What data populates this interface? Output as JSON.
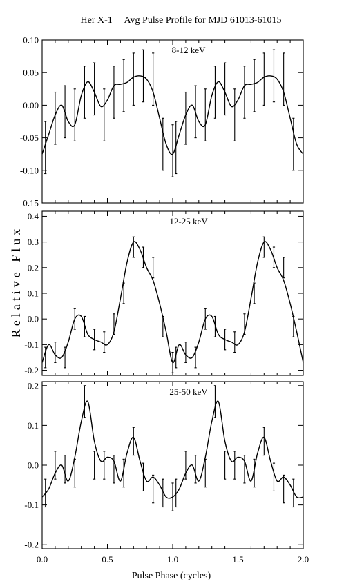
{
  "figure": {
    "title": "Her X-1     Avg Pulse Profile for MJD 61013-61015",
    "ylabel": "Relative Flux",
    "xlabel": "Pulse Phase (cycles)"
  },
  "chart_data": [
    {
      "type": "line",
      "panel_label": "8-12 keV",
      "xlim": [
        0.0,
        2.0
      ],
      "ylim": [
        -0.15,
        0.1
      ],
      "yticks": [
        "0.10",
        "0.05",
        "0.00",
        "-0.05",
        "-0.10",
        "-0.15"
      ],
      "ytick_values": [
        0.1,
        0.05,
        0.0,
        -0.05,
        -0.1,
        -0.15
      ],
      "xticks_values": [
        0.0,
        0.5,
        1.0,
        1.5,
        2.0
      ],
      "curve": {
        "x": [
          0.0,
          0.05,
          0.1,
          0.15,
          0.2,
          0.25,
          0.3,
          0.35,
          0.4,
          0.45,
          0.5,
          0.55,
          0.6,
          0.65,
          0.7,
          0.75,
          0.8,
          0.85,
          0.9,
          0.95,
          1.0,
          1.05,
          1.1,
          1.15,
          1.2,
          1.25,
          1.3,
          1.35,
          1.4,
          1.45,
          1.5,
          1.55,
          1.6,
          1.65,
          1.7,
          1.75,
          1.8,
          1.85,
          1.9,
          1.95,
          2.0
        ],
        "y": [
          -0.075,
          -0.045,
          -0.015,
          0.0,
          -0.025,
          -0.03,
          0.015,
          0.036,
          0.02,
          -0.002,
          0.008,
          0.03,
          0.032,
          0.035,
          0.043,
          0.045,
          0.04,
          0.02,
          -0.02,
          -0.06,
          -0.075,
          -0.045,
          -0.015,
          0.0,
          -0.025,
          -0.03,
          0.015,
          0.036,
          0.02,
          -0.002,
          0.008,
          0.03,
          0.032,
          0.035,
          0.043,
          0.045,
          0.04,
          0.02,
          -0.02,
          -0.06,
          -0.075
        ]
      },
      "points": {
        "x": [
          0.025,
          0.1,
          0.175,
          0.25,
          0.325,
          0.4,
          0.475,
          0.55,
          0.625,
          0.7,
          0.775,
          0.85,
          0.925,
          1.0,
          1.025,
          1.1,
          1.175,
          1.25,
          1.325,
          1.4,
          1.475,
          1.55,
          1.625,
          1.7,
          1.775,
          1.85,
          1.925
        ],
        "y": [
          -0.065,
          -0.02,
          -0.01,
          -0.015,
          0.02,
          0.025,
          -0.015,
          0.02,
          0.03,
          0.04,
          0.045,
          0.04,
          -0.06,
          -0.07,
          -0.065,
          -0.02,
          -0.01,
          -0.015,
          0.02,
          0.025,
          -0.015,
          0.02,
          0.03,
          0.04,
          0.045,
          0.04,
          -0.06
        ],
        "err": [
          0.04,
          0.04,
          0.04,
          0.04,
          0.04,
          0.04,
          0.04,
          0.04,
          0.04,
          0.04,
          0.04,
          0.04,
          0.04,
          0.04,
          0.04,
          0.04,
          0.04,
          0.04,
          0.04,
          0.04,
          0.04,
          0.04,
          0.04,
          0.04,
          0.04,
          0.04,
          0.04
        ]
      }
    },
    {
      "type": "line",
      "panel_label": "12-25 keV",
      "xlim": [
        0.0,
        2.0
      ],
      "ylim": [
        -0.22,
        0.42
      ],
      "yticks": [
        "0.4",
        "0.3",
        "0.2",
        "0.1",
        "0.0",
        "-0.1",
        "-0.2"
      ],
      "ytick_values": [
        0.4,
        0.3,
        0.2,
        0.1,
        0.0,
        -0.1,
        -0.2
      ],
      "xticks_values": [
        0.0,
        0.5,
        1.0,
        1.5,
        2.0
      ],
      "curve": {
        "x": [
          0.0,
          0.05,
          0.1,
          0.15,
          0.2,
          0.25,
          0.3,
          0.35,
          0.4,
          0.45,
          0.5,
          0.55,
          0.6,
          0.65,
          0.7,
          0.75,
          0.8,
          0.85,
          0.9,
          0.95,
          1.0,
          1.05,
          1.1,
          1.15,
          1.2,
          1.25,
          1.3,
          1.35,
          1.4,
          1.45,
          1.5,
          1.55,
          1.6,
          1.65,
          1.7,
          1.75,
          1.8,
          1.85,
          1.9,
          1.95,
          2.0
        ],
        "y": [
          -0.17,
          -0.1,
          -0.14,
          -0.15,
          -0.09,
          0.0,
          0.01,
          -0.06,
          -0.08,
          -0.09,
          -0.1,
          -0.05,
          0.08,
          0.22,
          0.3,
          0.27,
          0.2,
          0.15,
          0.06,
          -0.05,
          -0.17,
          -0.1,
          -0.14,
          -0.15,
          -0.09,
          0.0,
          0.01,
          -0.06,
          -0.08,
          -0.09,
          -0.1,
          -0.05,
          0.08,
          0.22,
          0.3,
          0.27,
          0.2,
          0.15,
          0.06,
          -0.05,
          -0.17
        ]
      },
      "points": {
        "x": [
          0.025,
          0.1,
          0.175,
          0.25,
          0.325,
          0.4,
          0.475,
          0.55,
          0.625,
          0.7,
          0.775,
          0.85,
          0.925,
          1.0,
          1.025,
          1.1,
          1.175,
          1.25,
          1.325,
          1.4,
          1.475,
          1.55,
          1.625,
          1.7,
          1.775,
          1.85,
          1.925
        ],
        "y": [
          -0.15,
          -0.13,
          -0.15,
          0.0,
          -0.03,
          -0.08,
          -0.09,
          -0.02,
          0.1,
          0.28,
          0.24,
          0.2,
          -0.03,
          -0.17,
          -0.15,
          -0.13,
          -0.15,
          0.0,
          -0.03,
          -0.08,
          -0.09,
          -0.02,
          0.1,
          0.28,
          0.24,
          0.2,
          -0.03
        ],
        "err": [
          0.04,
          0.04,
          0.04,
          0.04,
          0.04,
          0.04,
          0.04,
          0.04,
          0.04,
          0.04,
          0.04,
          0.04,
          0.04,
          0.04,
          0.04,
          0.04,
          0.04,
          0.04,
          0.04,
          0.04,
          0.04,
          0.04,
          0.04,
          0.04,
          0.04,
          0.04,
          0.04
        ]
      }
    },
    {
      "type": "line",
      "panel_label": "25-50 keV",
      "xlim": [
        0.0,
        2.0
      ],
      "ylim": [
        -0.21,
        0.21
      ],
      "yticks": [
        "0.2",
        "0.1",
        "0.0",
        "-0.1",
        "-0.2"
      ],
      "ytick_values": [
        0.2,
        0.1,
        0.0,
        -0.1,
        -0.2
      ],
      "xticks_values": [
        0.0,
        0.5,
        1.0,
        1.5,
        2.0
      ],
      "curve": {
        "x": [
          0.0,
          0.05,
          0.1,
          0.15,
          0.2,
          0.25,
          0.3,
          0.35,
          0.4,
          0.45,
          0.5,
          0.55,
          0.6,
          0.65,
          0.7,
          0.75,
          0.8,
          0.85,
          0.9,
          0.95,
          1.0,
          1.05,
          1.1,
          1.15,
          1.2,
          1.25,
          1.3,
          1.35,
          1.4,
          1.45,
          1.5,
          1.55,
          1.6,
          1.65,
          1.7,
          1.75,
          1.8,
          1.85,
          1.9,
          1.95,
          2.0
        ],
        "y": [
          -0.08,
          -0.06,
          -0.02,
          0.0,
          -0.04,
          0.02,
          0.11,
          0.16,
          0.06,
          0.01,
          0.02,
          0.01,
          -0.04,
          0.03,
          0.07,
          0.01,
          -0.04,
          -0.03,
          -0.05,
          -0.08,
          -0.08,
          -0.06,
          -0.02,
          0.0,
          -0.04,
          0.02,
          0.11,
          0.16,
          0.06,
          0.01,
          0.02,
          0.01,
          -0.04,
          0.03,
          0.07,
          0.01,
          -0.04,
          -0.03,
          -0.05,
          -0.08,
          -0.08
        ]
      },
      "points": {
        "x": [
          0.025,
          0.1,
          0.175,
          0.25,
          0.325,
          0.4,
          0.475,
          0.55,
          0.625,
          0.7,
          0.775,
          0.85,
          0.925,
          1.0,
          1.025,
          1.1,
          1.175,
          1.25,
          1.325,
          1.4,
          1.475,
          1.55,
          1.625,
          1.7,
          1.775,
          1.85,
          1.925
        ],
        "y": [
          -0.07,
          0.0,
          -0.01,
          -0.02,
          0.16,
          0.0,
          0.0,
          -0.01,
          -0.02,
          0.06,
          -0.03,
          -0.06,
          -0.07,
          -0.08,
          -0.07,
          0.0,
          -0.01,
          -0.02,
          0.16,
          0.0,
          0.0,
          -0.01,
          -0.02,
          0.06,
          -0.03,
          -0.06,
          -0.07
        ],
        "err": [
          0.035,
          0.035,
          0.035,
          0.035,
          0.04,
          0.035,
          0.035,
          0.035,
          0.035,
          0.035,
          0.035,
          0.035,
          0.035,
          0.035,
          0.035,
          0.035,
          0.035,
          0.035,
          0.04,
          0.035,
          0.035,
          0.035,
          0.035,
          0.035,
          0.035,
          0.035,
          0.035
        ]
      },
      "xtick_labels": [
        "0.0",
        "0.5",
        "1.0",
        "1.5",
        "2.0"
      ]
    }
  ]
}
